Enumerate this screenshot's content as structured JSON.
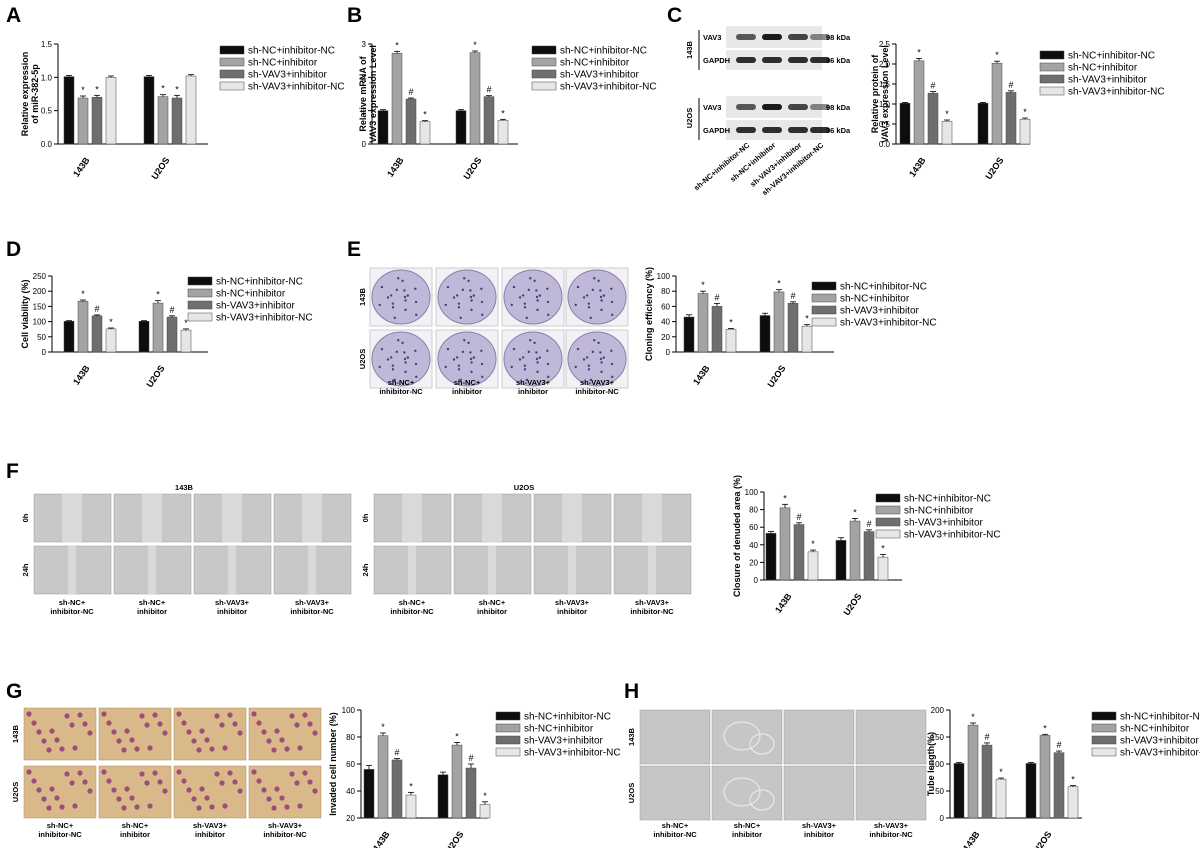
{
  "colors": {
    "series": [
      "#0d0d0d",
      "#a3a3a3",
      "#6e6e6e",
      "#e6e6e6"
    ],
    "plate_purple": "#c0b8d8",
    "migration_bg": "#c8c8c8",
    "transwell_bg": "#d9b98a",
    "tube_bg": "#c6c6c6",
    "blot_band": "#1a1a1a"
  },
  "legend_labels": [
    "sh-NC+inhibitor-NC",
    "sh-NC+inhibitor",
    "sh-VAV3+inhibitor",
    "sh-VAV3+inhibitor-NC"
  ],
  "condition_labels": [
    [
      "sh-NC+",
      "inhibitor-NC"
    ],
    [
      "sh-NC+",
      "inhibitor"
    ],
    [
      "sh-VAV3+",
      "inhibitor"
    ],
    [
      "sh-VAV3+",
      "inhibitor-NC"
    ]
  ],
  "cell_lines": [
    "143B",
    "U2OS"
  ],
  "western_blot": {
    "cell_lines": [
      "143B",
      "U2OS"
    ],
    "proteins": [
      "VAV3",
      "GAPDH"
    ],
    "sizes": [
      "98 kDa",
      "36 kDa"
    ],
    "lane_labels": [
      "sh-NC+inhibitor-NC",
      "sh-NC+inhibitor",
      "sh-VAV3+inhibitor",
      "sh-VAV3+inhibitor-NC"
    ]
  },
  "migration": {
    "titles": [
      "143B",
      "U2OS"
    ],
    "rows": [
      "0h",
      "24h"
    ]
  },
  "chart_data": [
    {
      "panel": "A",
      "type": "bar",
      "ylabel": "Relative expression of miR-382-5p",
      "categories": [
        "143B",
        "U2OS"
      ],
      "ylim": [
        0,
        1.5
      ],
      "yticks": [
        "0.0",
        "0.5",
        "1.0",
        "1.5"
      ],
      "series": [
        {
          "name": "sh-NC+inhibitor-NC",
          "values": [
            1.01,
            1.01
          ]
        },
        {
          "name": "sh-NC+inhibitor",
          "values": [
            0.69,
            0.71
          ]
        },
        {
          "name": "sh-VAV3+inhibitor",
          "values": [
            0.7,
            0.69
          ]
        },
        {
          "name": "sh-VAV3+inhibitor-NC",
          "values": [
            1.0,
            1.02
          ]
        }
      ],
      "errors": [
        [
          0.02,
          0.02
        ],
        [
          0.03,
          0.03
        ],
        [
          0.03,
          0.04
        ],
        [
          0.02,
          0.02
        ]
      ],
      "marks": [
        [
          "",
          ""
        ],
        [
          "*",
          "*"
        ],
        [
          "*",
          "*"
        ],
        [
          "",
          ""
        ]
      ]
    },
    {
      "panel": "B",
      "type": "bar",
      "ylabel": "Relative mRNA of VAV3 expression Level",
      "categories": [
        "143B",
        "U2OS"
      ],
      "ylim": [
        0,
        3
      ],
      "yticks": [
        "0",
        "1",
        "2",
        "3"
      ],
      "series": [
        {
          "name": "sh-NC+inhibitor-NC",
          "values": [
            1.0,
            1.0
          ]
        },
        {
          "name": "sh-NC+inhibitor",
          "values": [
            2.72,
            2.74
          ]
        },
        {
          "name": "sh-VAV3+inhibitor",
          "values": [
            1.35,
            1.42
          ]
        },
        {
          "name": "sh-VAV3+inhibitor-NC",
          "values": [
            0.67,
            0.71
          ]
        }
      ],
      "errors": [
        [
          0.03,
          0.03
        ],
        [
          0.06,
          0.05
        ],
        [
          0.03,
          0.03
        ],
        [
          0.03,
          0.03
        ]
      ],
      "marks": [
        [
          "",
          ""
        ],
        [
          "*",
          "*"
        ],
        [
          "#",
          "#"
        ],
        [
          "*",
          "*"
        ]
      ]
    },
    {
      "panel": "C",
      "type": "bar",
      "ylabel": "Relative protein of VAV3 expression Level",
      "categories": [
        "143B",
        "U2OS"
      ],
      "ylim": [
        0,
        2.5
      ],
      "yticks": [
        "0.0",
        "0.5",
        "1.0",
        "1.5",
        "2.0",
        "2.5"
      ],
      "series": [
        {
          "name": "sh-NC+inhibitor-NC",
          "values": [
            1.02,
            1.02
          ]
        },
        {
          "name": "sh-NC+inhibitor",
          "values": [
            2.08,
            2.02
          ]
        },
        {
          "name": "sh-VAV3+inhibitor",
          "values": [
            1.27,
            1.29
          ]
        },
        {
          "name": "sh-VAV3+inhibitor-NC",
          "values": [
            0.57,
            0.62
          ]
        }
      ],
      "errors": [
        [
          0.02,
          0.02
        ],
        [
          0.06,
          0.05
        ],
        [
          0.04,
          0.04
        ],
        [
          0.03,
          0.03
        ]
      ],
      "marks": [
        [
          "",
          ""
        ],
        [
          "*",
          "*"
        ],
        [
          "#",
          "#"
        ],
        [
          "*",
          "*"
        ]
      ]
    },
    {
      "panel": "D",
      "type": "bar",
      "ylabel": "Cell viability (%)",
      "categories": [
        "143B",
        "U2OS"
      ],
      "ylim": [
        0,
        250
      ],
      "yticks": [
        "0",
        "50",
        "100",
        "150",
        "200",
        "250"
      ],
      "series": [
        {
          "name": "sh-NC+inhibitor-NC",
          "values": [
            101,
            101
          ]
        },
        {
          "name": "sh-NC+inhibitor",
          "values": [
            167,
            161
          ]
        },
        {
          "name": "sh-VAV3+inhibitor",
          "values": [
            119,
            115
          ]
        },
        {
          "name": "sh-VAV3+inhibitor-NC",
          "values": [
            76,
            72
          ]
        }
      ],
      "errors": [
        [
          2,
          2
        ],
        [
          4,
          8
        ],
        [
          3,
          4
        ],
        [
          3,
          4
        ]
      ],
      "marks": [
        [
          "",
          ""
        ],
        [
          "*",
          "*"
        ],
        [
          "#",
          "#"
        ],
        [
          "*",
          "*"
        ]
      ]
    },
    {
      "panel": "E",
      "type": "bar",
      "ylabel": "Cloning efficiency (%)",
      "categories": [
        "143B",
        "U2OS"
      ],
      "ylim": [
        0,
        100
      ],
      "yticks": [
        "0",
        "20",
        "40",
        "60",
        "80",
        "100"
      ],
      "series": [
        {
          "name": "sh-NC+inhibitor-NC",
          "values": [
            46,
            48
          ]
        },
        {
          "name": "sh-NC+inhibitor",
          "values": [
            77,
            79
          ]
        },
        {
          "name": "sh-VAV3+inhibitor",
          "values": [
            60,
            64
          ]
        },
        {
          "name": "sh-VAV3+inhibitor-NC",
          "values": [
            30,
            34
          ]
        }
      ],
      "errors": [
        [
          3,
          3
        ],
        [
          3,
          3
        ],
        [
          4,
          2
        ],
        [
          1,
          2
        ]
      ],
      "marks": [
        [
          "",
          ""
        ],
        [
          "*",
          "*"
        ],
        [
          "#",
          "#"
        ],
        [
          "*",
          "*"
        ]
      ]
    },
    {
      "panel": "F",
      "type": "bar",
      "ylabel": "Closure of denuded area (%)",
      "categories": [
        "143B",
        "U2OS"
      ],
      "ylim": [
        0,
        100
      ],
      "yticks": [
        "0",
        "20",
        "40",
        "60",
        "80",
        "100"
      ],
      "series": [
        {
          "name": "sh-NC+inhibitor-NC",
          "values": [
            53,
            45
          ]
        },
        {
          "name": "sh-NC+inhibitor",
          "values": [
            82,
            67
          ]
        },
        {
          "name": "sh-VAV3+inhibitor",
          "values": [
            63,
            55
          ]
        },
        {
          "name": "sh-VAV3+inhibitor-NC",
          "values": [
            32,
            26
          ]
        }
      ],
      "errors": [
        [
          2,
          3
        ],
        [
          4,
          3
        ],
        [
          2,
          2
        ],
        [
          2,
          3
        ]
      ],
      "marks": [
        [
          "",
          ""
        ],
        [
          "*",
          "*"
        ],
        [
          "#",
          "#"
        ],
        [
          "*",
          "*"
        ]
      ]
    },
    {
      "panel": "G",
      "type": "bar",
      "ylabel": "Invaded cell number (%)",
      "categories": [
        "143B",
        "U2OS"
      ],
      "ylim": [
        20,
        100
      ],
      "yticks": [
        "20",
        "40",
        "60",
        "80",
        "100"
      ],
      "series": [
        {
          "name": "sh-NC+inhibitor-NC",
          "values": [
            56,
            52
          ]
        },
        {
          "name": "sh-NC+inhibitor",
          "values": [
            81,
            74
          ]
        },
        {
          "name": "sh-VAV3+inhibitor",
          "values": [
            63,
            57
          ]
        },
        {
          "name": "sh-VAV3+inhibitor-NC",
          "values": [
            37,
            30
          ]
        }
      ],
      "errors": [
        [
          3,
          2
        ],
        [
          2,
          2
        ],
        [
          1,
          3
        ],
        [
          2,
          2
        ]
      ],
      "marks": [
        [
          "",
          ""
        ],
        [
          "*",
          "*"
        ],
        [
          "#",
          "#"
        ],
        [
          "*",
          "*"
        ]
      ]
    },
    {
      "panel": "H",
      "type": "bar",
      "ylabel": "Tube length(%)",
      "categories": [
        "143B",
        "U2OS"
      ],
      "ylim": [
        0,
        200
      ],
      "yticks": [
        "0",
        "50",
        "100",
        "150",
        "200"
      ],
      "series": [
        {
          "name": "sh-NC+inhibitor-NC",
          "values": [
            101,
            101
          ]
        },
        {
          "name": "sh-NC+inhibitor",
          "values": [
            172,
            153
          ]
        },
        {
          "name": "sh-VAV3+inhibitor",
          "values": [
            135,
            121
          ]
        },
        {
          "name": "sh-VAV3+inhibitor-NC",
          "values": [
            72,
            58
          ]
        }
      ],
      "errors": [
        [
          2,
          2
        ],
        [
          4,
          2
        ],
        [
          4,
          3
        ],
        [
          2,
          2
        ]
      ],
      "marks": [
        [
          "",
          ""
        ],
        [
          "*",
          "*"
        ],
        [
          "#",
          "#"
        ],
        [
          "*",
          "*"
        ]
      ]
    }
  ]
}
